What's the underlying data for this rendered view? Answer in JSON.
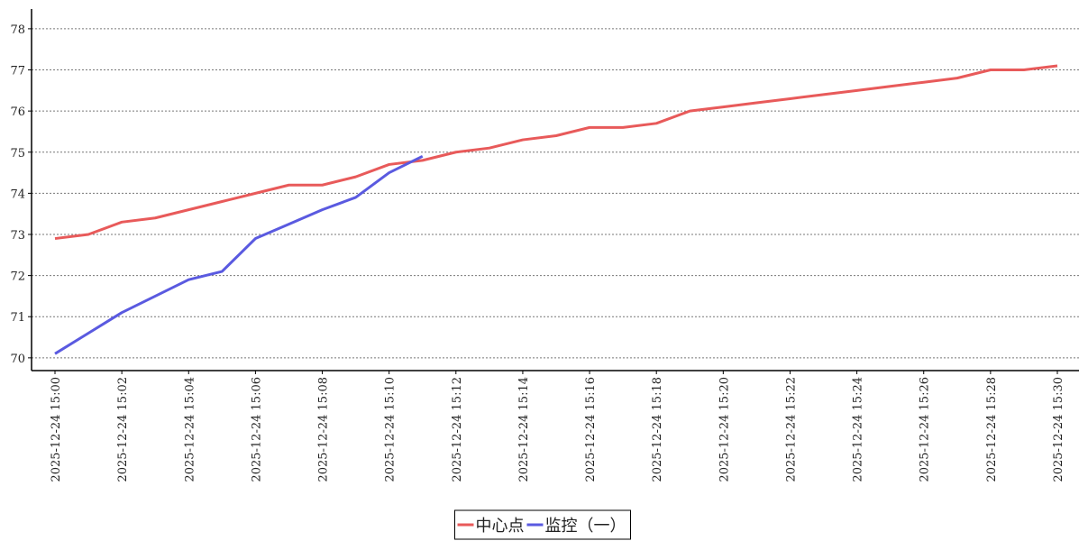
{
  "chart_data": {
    "type": "line",
    "categories": [
      "2025-12-24 15:00",
      null,
      "2025-12-24 15:02",
      null,
      "2025-12-24 15:04",
      null,
      "2025-12-24 15:06",
      null,
      "2025-12-24 15:08",
      null,
      "2025-12-24 15:10",
      null,
      "2025-12-24 15:12",
      null,
      "2025-12-24 15:14",
      null,
      "2025-12-24 15:16",
      null,
      "2025-12-24 15:18",
      null,
      "2025-12-24 15:20",
      null,
      "2025-12-24 15:22",
      null,
      "2025-12-24 15:24",
      null,
      "2025-12-24 15:26",
      null,
      "2025-12-24 15:28",
      null,
      "2025-12-24 15:30"
    ],
    "series": [
      {
        "name": "中心点",
        "color": "#e85a5a",
        "values": [
          72.9,
          73.0,
          73.3,
          73.4,
          73.6,
          73.8,
          74.0,
          74.2,
          74.2,
          74.4,
          74.7,
          74.8,
          75.0,
          75.1,
          75.3,
          75.4,
          75.6,
          75.6,
          75.7,
          76.0,
          76.1,
          76.2,
          76.3,
          76.4,
          76.5,
          76.6,
          76.7,
          76.8,
          77.0,
          77.0,
          77.1
        ]
      },
      {
        "name": "监控（一）",
        "color": "#5a5ae0",
        "values": [
          70.1,
          70.6,
          71.1,
          71.5,
          71.9,
          72.1,
          72.9,
          73.25,
          73.6,
          73.9,
          74.5,
          74.9,
          null,
          null,
          null,
          null,
          null,
          null,
          null,
          null,
          null,
          null,
          null,
          null,
          null,
          null,
          null,
          null,
          null,
          null,
          null
        ]
      }
    ],
    "ylim": [
      69.69,
      78.48
    ],
    "yticks": [
      70,
      71,
      72,
      73,
      74,
      75,
      76,
      77,
      78
    ],
    "grid": true,
    "legend": "bottom"
  }
}
